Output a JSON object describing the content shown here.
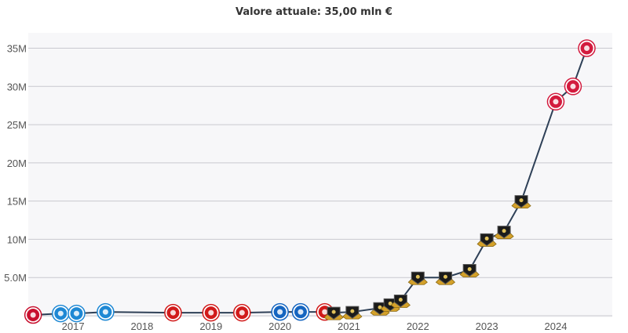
{
  "header": {
    "title": "Valore attuale: 35,00 mln €"
  },
  "chart_data": {
    "type": "line",
    "title": "Valore attuale: 35,00 mln €",
    "xlabel": "",
    "ylabel": "",
    "ylim": [
      0,
      37000000
    ],
    "xlim": [
      2016.35,
      2024.82
    ],
    "y_ticks": [
      {
        "value": 5000000,
        "label": "5.0M"
      },
      {
        "value": 10000000,
        "label": "10M"
      },
      {
        "value": 15000000,
        "label": "15M"
      },
      {
        "value": 20000000,
        "label": "20M"
      },
      {
        "value": 25000000,
        "label": "25M"
      },
      {
        "value": 30000000,
        "label": "30M"
      },
      {
        "value": 35000000,
        "label": "35M"
      }
    ],
    "x_ticks": [
      {
        "value": 2017,
        "label": "2017"
      },
      {
        "value": 2018,
        "label": "2018"
      },
      {
        "value": 2019,
        "label": "2019"
      },
      {
        "value": 2020,
        "label": "2020"
      },
      {
        "value": 2021,
        "label": "2021"
      },
      {
        "value": 2022,
        "label": "2022"
      },
      {
        "value": 2023,
        "label": "2023"
      },
      {
        "value": 2024,
        "label": "2024"
      }
    ],
    "grid": true,
    "series": [
      {
        "line_color": "#2e4057",
        "points": [
          {
            "x": 2016.42,
            "y": 100000,
            "club": "club-a",
            "color": "#c8102e"
          },
          {
            "x": 2016.82,
            "y": 300000,
            "club": "club-b",
            "color": "#1e88d4"
          },
          {
            "x": 2017.05,
            "y": 300000,
            "club": "club-b",
            "color": "#1e88d4"
          },
          {
            "x": 2017.47,
            "y": 500000,
            "club": "club-b",
            "color": "#1e88d4"
          },
          {
            "x": 2018.45,
            "y": 400000,
            "club": "club-c",
            "color": "#d11a1a"
          },
          {
            "x": 2019.0,
            "y": 400000,
            "club": "club-c",
            "color": "#d11a1a"
          },
          {
            "x": 2019.45,
            "y": 400000,
            "club": "club-c",
            "color": "#d11a1a"
          },
          {
            "x": 2020.0,
            "y": 500000,
            "club": "club-d",
            "color": "#1565c0"
          },
          {
            "x": 2020.3,
            "y": 500000,
            "club": "club-d",
            "color": "#1565c0"
          },
          {
            "x": 2020.65,
            "y": 500000,
            "club": "club-c",
            "color": "#d11a1a"
          },
          {
            "x": 2020.78,
            "y": 400000,
            "club": "club-e",
            "color": "#222222"
          },
          {
            "x": 2021.05,
            "y": 500000,
            "club": "club-e",
            "color": "#222222"
          },
          {
            "x": 2021.45,
            "y": 1000000,
            "club": "club-e",
            "color": "#222222"
          },
          {
            "x": 2021.6,
            "y": 1500000,
            "club": "club-e",
            "color": "#222222"
          },
          {
            "x": 2021.75,
            "y": 2000000,
            "club": "club-e",
            "color": "#222222"
          },
          {
            "x": 2022.0,
            "y": 5000000,
            "club": "club-e",
            "color": "#222222"
          },
          {
            "x": 2022.4,
            "y": 5000000,
            "club": "club-e",
            "color": "#222222"
          },
          {
            "x": 2022.75,
            "y": 6000000,
            "club": "club-e",
            "color": "#222222"
          },
          {
            "x": 2023.0,
            "y": 10000000,
            "club": "club-e",
            "color": "#222222"
          },
          {
            "x": 2023.25,
            "y": 11000000,
            "club": "club-e",
            "color": "#222222"
          },
          {
            "x": 2023.5,
            "y": 15000000,
            "club": "club-e",
            "color": "#222222"
          },
          {
            "x": 2024.0,
            "y": 28000000,
            "club": "club-f",
            "color": "#d31b3e"
          },
          {
            "x": 2024.25,
            "y": 30000000,
            "club": "club-f",
            "color": "#d31b3e"
          },
          {
            "x": 2024.45,
            "y": 35000000,
            "club": "club-f",
            "color": "#d31b3e"
          }
        ]
      }
    ]
  }
}
